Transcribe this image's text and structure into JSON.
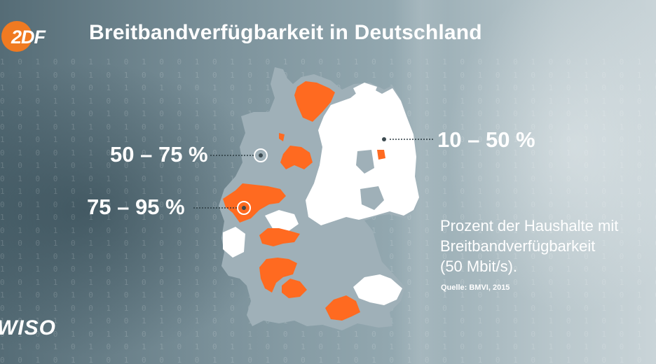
{
  "header": {
    "logo_text": "2DF",
    "title": "Breitbandverfügbarkeit in Deutschland"
  },
  "legend": {
    "band_low": "10 – 50 %",
    "band_mid": "50 – 75 %",
    "band_high": "75 – 95 %"
  },
  "description": {
    "line1": "Prozent der Haushalte mit",
    "line2": "Breitbandverfügbarkeit",
    "line3": "(50 Mbit/s)."
  },
  "source": "Quelle: BMVI, 2015",
  "branding": {
    "show_name": "WISO"
  },
  "colors": {
    "band_low": "#ffffff",
    "band_mid": "#9fb0b8",
    "band_high": "#ff6a20",
    "logo_accent": "#f07a21"
  },
  "icons": [
    "zdf-logo",
    "germany-map",
    "callout-marker-icon"
  ]
}
